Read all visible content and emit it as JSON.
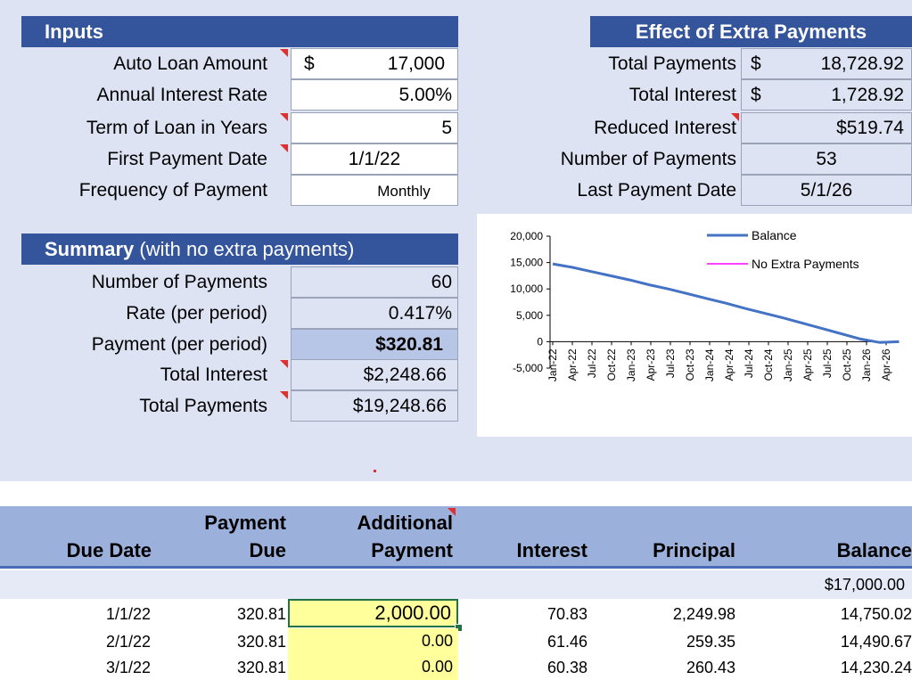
{
  "inputs": {
    "title": "Inputs",
    "auto_loan_amount": {
      "label": "Auto Loan Amount",
      "currency": "$",
      "value": "17,000"
    },
    "annual_interest_rate": {
      "label": "Annual Interest Rate",
      "value": "5.00%"
    },
    "term_years": {
      "label": "Term of Loan in Years",
      "value": "5"
    },
    "first_payment_date": {
      "label": "First Payment Date",
      "value": "1/1/22"
    },
    "frequency": {
      "label": "Frequency of Payment",
      "value": "Monthly"
    }
  },
  "effect": {
    "title": "Effect of Extra Payments",
    "total_payments": {
      "label": "Total Payments",
      "currency": "$",
      "value": "18,728.92"
    },
    "total_interest": {
      "label": "Total Interest",
      "currency": "$",
      "value": "1,728.92"
    },
    "reduced_interest": {
      "label": "Reduced Interest",
      "value": "$519.74"
    },
    "number_of_payments": {
      "label": "Number of Payments",
      "value": "53"
    },
    "last_payment_date": {
      "label": "Last Payment Date",
      "value": "5/1/26"
    }
  },
  "summary": {
    "title_bold": "Summary",
    "title_rest": " (with no extra payments)",
    "number_of_payments": {
      "label": "Number of Payments",
      "value": "60"
    },
    "rate": {
      "label": "Rate (per period)",
      "value": "0.417%"
    },
    "payment": {
      "label": "Payment (per period)",
      "value": "$320.81"
    },
    "total_interest": {
      "label": "Total Interest",
      "value": "$2,248.66"
    },
    "total_payments": {
      "label": "Total Payments",
      "value": "$19,248.66"
    }
  },
  "chart_data": {
    "type": "line",
    "title": "",
    "xlabel": "",
    "ylabel": "",
    "ylim": [
      -5000,
      20000
    ],
    "y_ticks": [
      "20,000",
      "15,000",
      "10,000",
      "5,000",
      "0",
      "-5,000"
    ],
    "x_ticks": [
      "Jan-22",
      "Apr-22",
      "Jul-22",
      "Oct-22",
      "Jan-23",
      "Apr-23",
      "Jul-23",
      "Oct-23",
      "Jan-24",
      "Apr-24",
      "Jul-24",
      "Oct-24",
      "Jan-25",
      "Apr-25",
      "Jul-25",
      "Oct-25",
      "Jan-26",
      "Apr-26"
    ],
    "legend_position": "top-right",
    "series": [
      {
        "name": "Balance",
        "color": "#4472c4",
        "x": [
          "Jan-22",
          "Apr-22",
          "Jul-22",
          "Oct-22",
          "Jan-23",
          "Apr-23",
          "Jul-23",
          "Oct-23",
          "Jan-24",
          "Apr-24",
          "Jul-24",
          "Oct-24",
          "Jan-25",
          "Apr-25",
          "Jul-25",
          "Oct-25",
          "Jan-26",
          "Apr-26",
          "May-26"
        ],
        "values": [
          14750,
          14100,
          13300,
          12500,
          11700,
          10800,
          10000,
          9100,
          8200,
          7300,
          6300,
          5400,
          4500,
          3500,
          2500,
          1500,
          500,
          -150,
          0
        ]
      },
      {
        "name": "No Extra Payments",
        "color": "#ff00ff",
        "values": []
      }
    ]
  },
  "table": {
    "headers": [
      {
        "line1": "",
        "line2": "Due Date"
      },
      {
        "line1": "Payment",
        "line2": "Due"
      },
      {
        "line1": "Additional",
        "line2": "Payment"
      },
      {
        "line1": "",
        "line2": "Interest"
      },
      {
        "line1": "",
        "line2": "Principal"
      },
      {
        "line1": "",
        "line2": "Balance"
      }
    ],
    "starting_balance": "$17,000.00",
    "rows": [
      {
        "date": "1/1/22",
        "due": "320.81",
        "additional": "2,000.00",
        "interest": "70.83",
        "principal": "2,249.98",
        "balance": "14,750.02"
      },
      {
        "date": "2/1/22",
        "due": "320.81",
        "additional": "0.00",
        "interest": "61.46",
        "principal": "259.35",
        "balance": "14,490.67"
      },
      {
        "date": "3/1/22",
        "due": "320.81",
        "additional": "0.00",
        "interest": "60.38",
        "principal": "260.43",
        "balance": "14,230.24"
      }
    ]
  }
}
